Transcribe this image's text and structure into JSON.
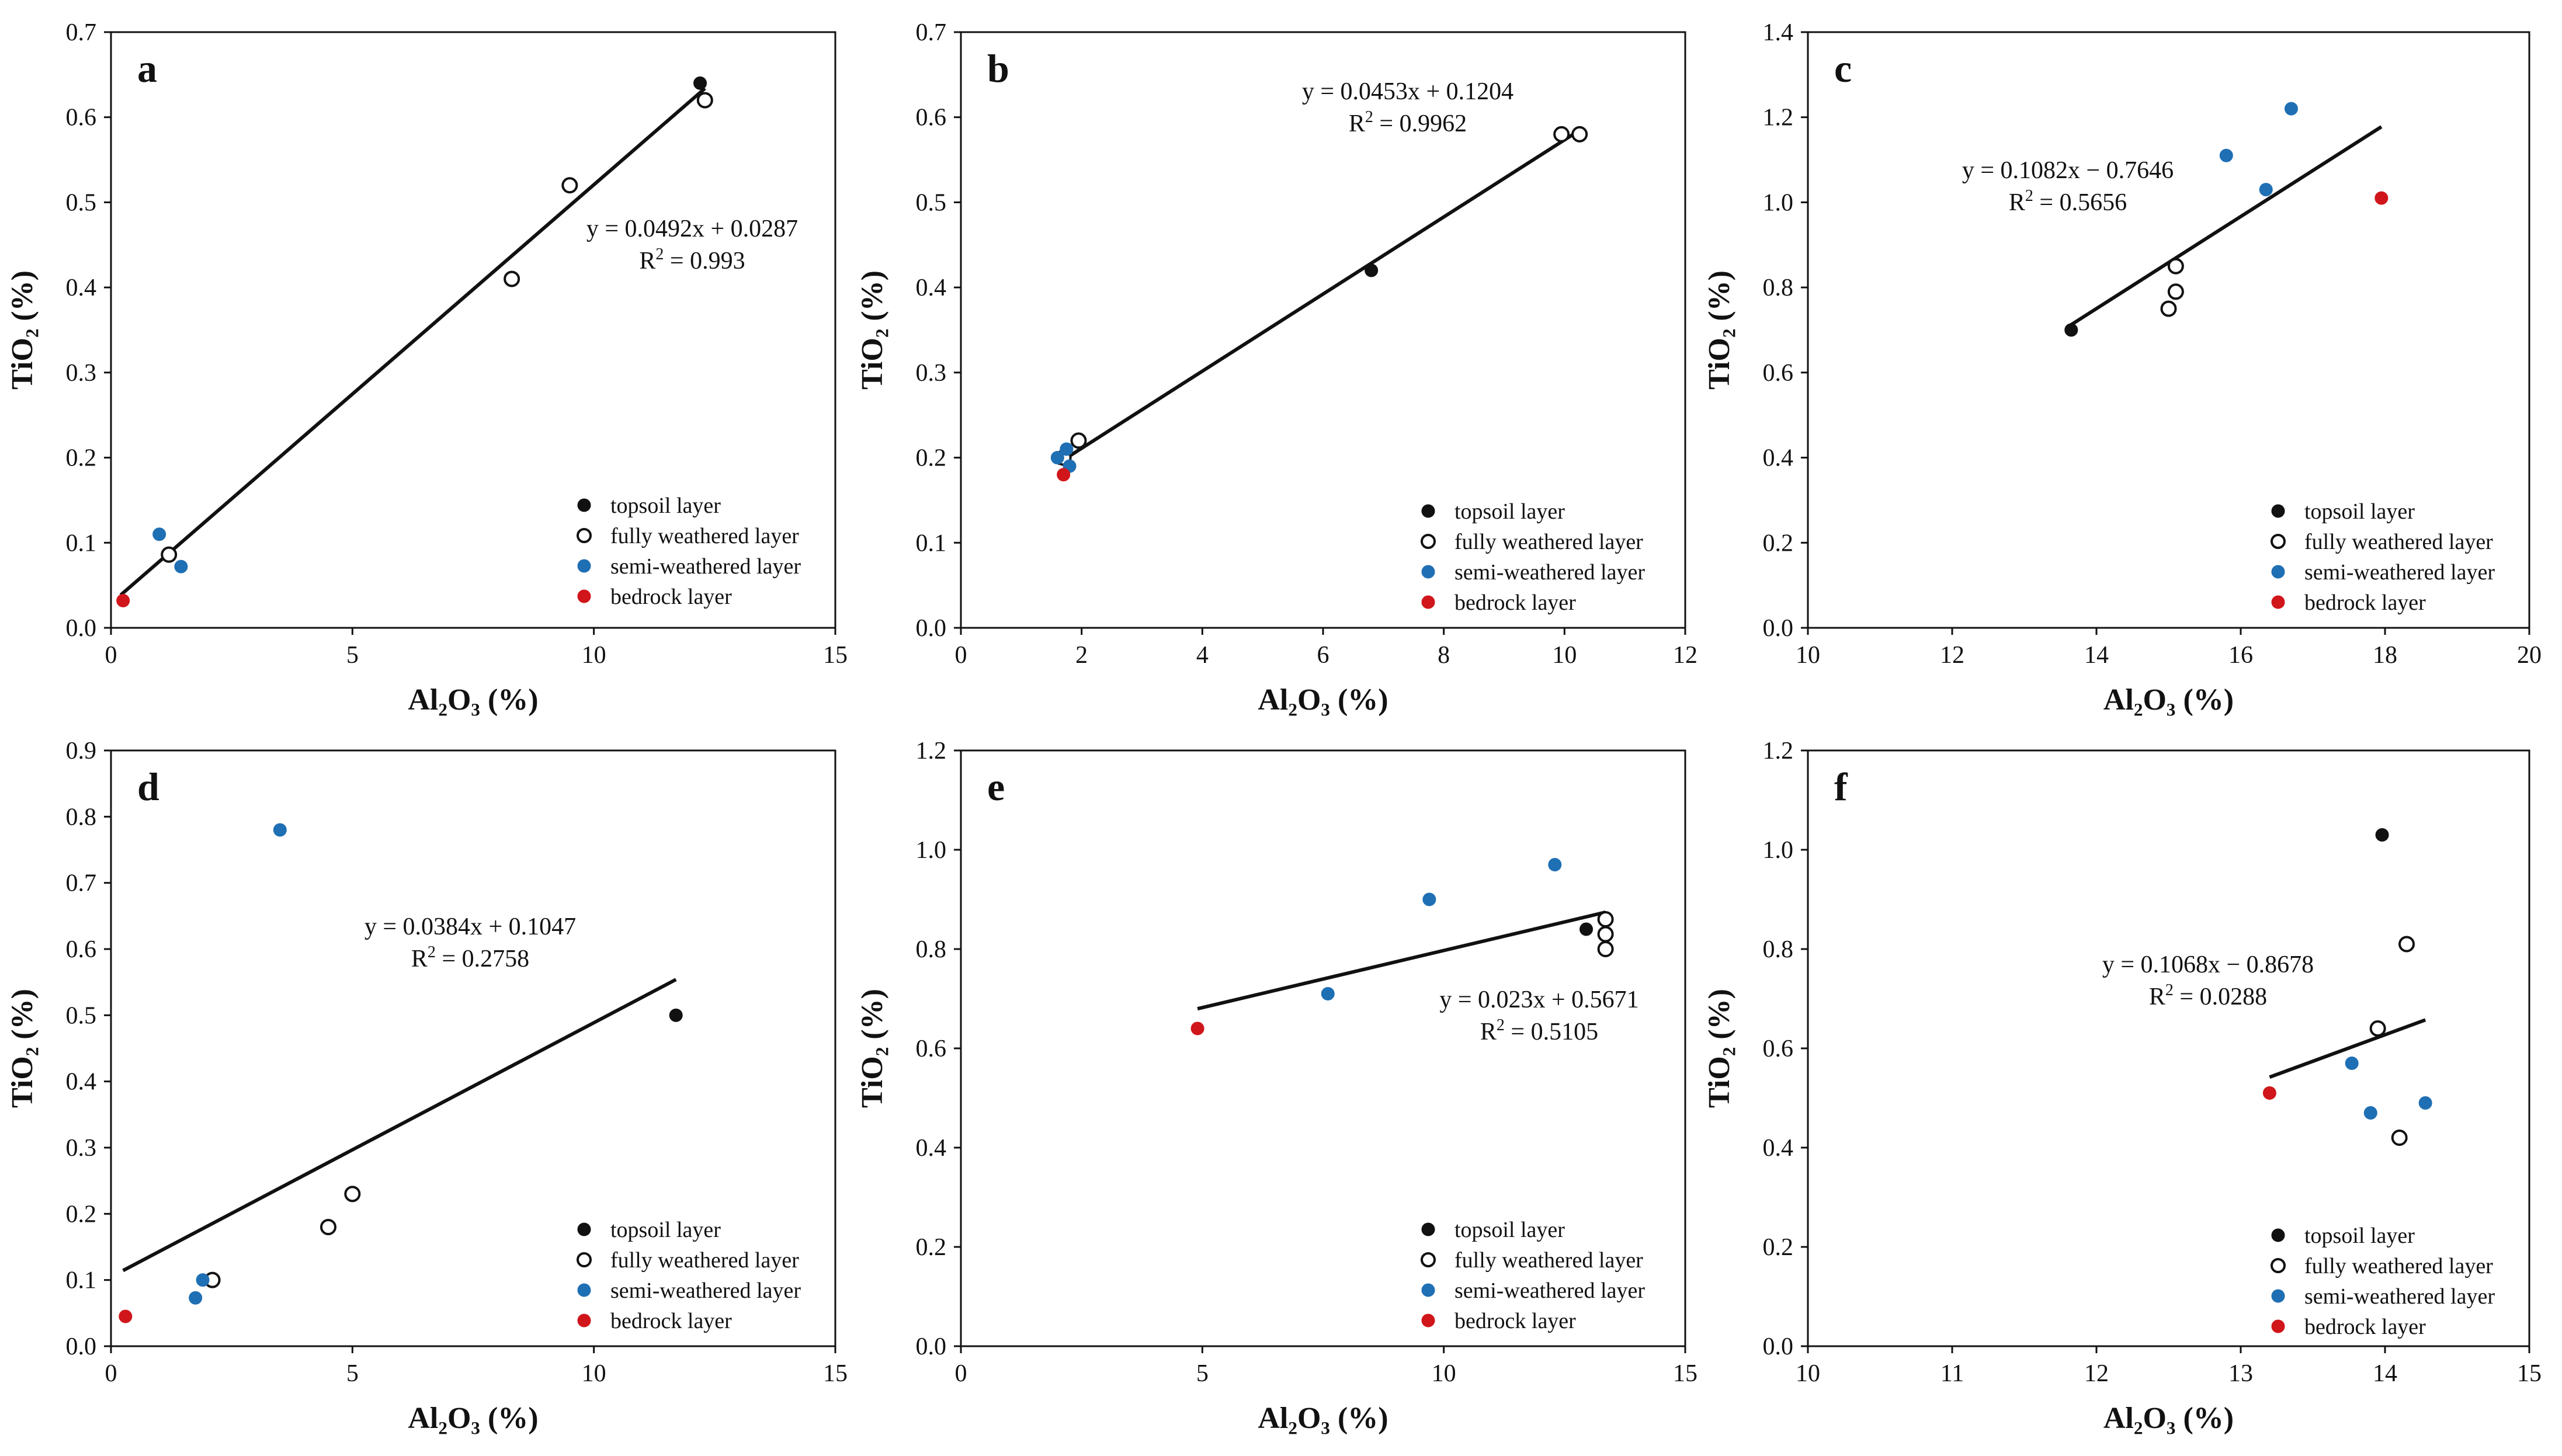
{
  "legend_labels": [
    "topsoil layer",
    "fully weathered layer",
    "semi-weathered layer",
    "bedrock layer"
  ],
  "colors": {
    "topsoil": "#111111",
    "fully_weathered": "#ffffff",
    "semi_weathered": "#1f6fb4",
    "bedrock": "#d0161b",
    "axis": "#111111"
  },
  "chart_data": [
    {
      "panel": "a",
      "type": "scatter",
      "xlabel": "Al₂O₃ (%)",
      "ylabel": "TiO₂ (%)",
      "xlim": [
        0,
        15
      ],
      "ylim": [
        0,
        0.7
      ],
      "xticks": [
        0,
        5,
        10,
        15
      ],
      "xtick_labels": [
        "0",
        "5",
        "10",
        "15"
      ],
      "yticks": [
        0,
        0.1,
        0.2,
        0.3,
        0.4,
        0.5,
        0.6,
        0.7
      ],
      "ytick_labels": [
        "0.0",
        "0.1",
        "0.2",
        "0.3",
        "0.4",
        "0.5",
        "0.6",
        "0.7"
      ],
      "series": [
        {
          "name": "topsoil layer",
          "points": [
            [
              12.2,
              0.64
            ]
          ]
        },
        {
          "name": "fully weathered layer",
          "points": [
            [
              12.3,
              0.62
            ],
            [
              9.5,
              0.52
            ],
            [
              8.3,
              0.41
            ],
            [
              1.2,
              0.086
            ]
          ]
        },
        {
          "name": "semi-weathered layer",
          "points": [
            [
              1.0,
              0.11
            ],
            [
              1.45,
              0.072
            ]
          ]
        },
        {
          "name": "bedrock layer",
          "points": [
            [
              0.25,
              0.032
            ]
          ]
        }
      ],
      "fit": {
        "slope": 0.0492,
        "intercept": 0.0287,
        "x_range": [
          0.2,
          12.3
        ]
      },
      "equation": "y = 0.0492x + 0.0287",
      "r2_label": "R",
      "r2_value": " = 0.993"
    },
    {
      "panel": "b",
      "type": "scatter",
      "xlabel": "Al₂O₃ (%)",
      "ylabel": "TiO₂ (%)",
      "xlim": [
        0,
        12
      ],
      "ylim": [
        0,
        0.7
      ],
      "xticks": [
        0,
        2,
        4,
        6,
        8,
        10,
        12
      ],
      "xtick_labels": [
        "0",
        "2",
        "4",
        "6",
        "8",
        "10",
        "12"
      ],
      "yticks": [
        0,
        0.1,
        0.2,
        0.3,
        0.4,
        0.5,
        0.6,
        0.7
      ],
      "ytick_labels": [
        "0.0",
        "0.1",
        "0.2",
        "0.3",
        "0.4",
        "0.5",
        "0.6",
        "0.7"
      ],
      "series": [
        {
          "name": "topsoil layer",
          "points": [
            [
              6.8,
              0.42
            ]
          ]
        },
        {
          "name": "fully weathered layer",
          "points": [
            [
              9.95,
              0.58
            ],
            [
              10.25,
              0.58
            ],
            [
              1.95,
              0.22
            ],
            [
              1.7,
              0.2
            ]
          ]
        },
        {
          "name": "semi-weathered layer",
          "points": [
            [
              1.6,
              0.2
            ],
            [
              1.75,
              0.21
            ],
            [
              1.8,
              0.19
            ]
          ]
        },
        {
          "name": "bedrock layer",
          "points": [
            [
              1.7,
              0.18
            ]
          ]
        }
      ],
      "fit": {
        "slope": 0.0453,
        "intercept": 0.1204,
        "x_range": [
          1.6,
          10.25
        ]
      },
      "equation": "y = 0.0453x + 0.1204",
      "r2_label": "R",
      "r2_value": " = 0.9962"
    },
    {
      "panel": "c",
      "type": "scatter",
      "xlabel": "Al₂O₃ (%)",
      "ylabel": "TiO₂ (%)",
      "xlim": [
        10,
        20
      ],
      "ylim": [
        0,
        1.4
      ],
      "xticks": [
        10,
        12,
        14,
        16,
        18,
        20
      ],
      "xtick_labels": [
        "10",
        "12",
        "14",
        "16",
        "18",
        "20"
      ],
      "yticks": [
        0,
        0.2,
        0.4,
        0.6,
        0.8,
        1.0,
        1.2,
        1.4
      ],
      "ytick_labels": [
        "0.0",
        "0.2",
        "0.4",
        "0.6",
        "0.8",
        "1.0",
        "1.2",
        "1.4"
      ],
      "series": [
        {
          "name": "topsoil layer",
          "points": [
            [
              13.65,
              0.7
            ]
          ]
        },
        {
          "name": "fully weathered layer",
          "points": [
            [
              15.1,
              0.85
            ],
            [
              15.1,
              0.79
            ],
            [
              15.0,
              0.75
            ]
          ]
        },
        {
          "name": "semi-weathered layer",
          "points": [
            [
              16.7,
              1.22
            ],
            [
              15.8,
              1.11
            ],
            [
              16.35,
              1.03
            ]
          ]
        },
        {
          "name": "bedrock layer",
          "points": [
            [
              17.95,
              1.01
            ]
          ]
        }
      ],
      "fit": {
        "slope": 0.1082,
        "intercept": -0.7646,
        "x_range": [
          13.6,
          17.95
        ]
      },
      "equation": "y = 0.1082x − 0.7646",
      "r2_label": "R",
      "r2_value": " = 0.5656"
    },
    {
      "panel": "d",
      "type": "scatter",
      "xlabel": "Al₂O₃ (%)",
      "ylabel": "TiO₂ (%)",
      "xlim": [
        0,
        15
      ],
      "ylim": [
        0,
        0.9
      ],
      "xticks": [
        0,
        5,
        10,
        15
      ],
      "xtick_labels": [
        "0",
        "5",
        "10",
        "15"
      ],
      "yticks": [
        0,
        0.1,
        0.2,
        0.3,
        0.4,
        0.5,
        0.6,
        0.7,
        0.8,
        0.9
      ],
      "ytick_labels": [
        "0.0",
        "0.1",
        "0.2",
        "0.3",
        "0.4",
        "0.5",
        "0.6",
        "0.7",
        "0.8",
        "0.9"
      ],
      "series": [
        {
          "name": "topsoil layer",
          "points": [
            [
              11.7,
              0.5
            ]
          ]
        },
        {
          "name": "fully weathered layer",
          "points": [
            [
              5.0,
              0.23
            ],
            [
              4.5,
              0.18
            ],
            [
              2.1,
              0.1
            ]
          ]
        },
        {
          "name": "semi-weathered layer",
          "points": [
            [
              3.5,
              0.78
            ],
            [
              1.9,
              0.1
            ],
            [
              1.75,
              0.073
            ]
          ]
        },
        {
          "name": "bedrock layer",
          "points": [
            [
              0.3,
              0.045
            ]
          ]
        }
      ],
      "fit": {
        "slope": 0.0384,
        "intercept": 0.1047,
        "x_range": [
          0.25,
          11.7
        ]
      },
      "equation": "y = 0.0384x + 0.1047",
      "r2_label": "R",
      "r2_value": " = 0.2758"
    },
    {
      "panel": "e",
      "type": "scatter",
      "xlabel": "Al₂O₃ (%)",
      "ylabel": "TiO₂ (%)",
      "xlim": [
        0,
        15
      ],
      "ylim": [
        0,
        1.2
      ],
      "xticks": [
        0,
        5,
        10,
        15
      ],
      "xtick_labels": [
        "0",
        "5",
        "10",
        "15"
      ],
      "yticks": [
        0,
        0.2,
        0.4,
        0.6,
        0.8,
        1.0,
        1.2
      ],
      "ytick_labels": [
        "0.0",
        "0.2",
        "0.4",
        "0.6",
        "0.8",
        "1.0",
        "1.2"
      ],
      "series": [
        {
          "name": "topsoil layer",
          "points": [
            [
              12.95,
              0.84
            ]
          ]
        },
        {
          "name": "fully weathered layer",
          "points": [
            [
              13.35,
              0.86
            ],
            [
              13.35,
              0.83
            ],
            [
              13.35,
              0.8
            ]
          ]
        },
        {
          "name": "semi-weathered layer",
          "points": [
            [
              9.7,
              0.9
            ],
            [
              12.3,
              0.97
            ],
            [
              7.6,
              0.71
            ]
          ]
        },
        {
          "name": "bedrock layer",
          "points": [
            [
              4.9,
              0.64
            ]
          ]
        }
      ],
      "fit": {
        "slope": 0.023,
        "intercept": 0.5671,
        "x_range": [
          4.9,
          13.35
        ]
      },
      "equation": "y = 0.023x + 0.5671",
      "r2_label": "R",
      "r2_value": " = 0.5105"
    },
    {
      "panel": "f",
      "type": "scatter",
      "xlabel": "Al₂O₃ (%)",
      "ylabel": "TiO₂ (%)",
      "xlim": [
        10,
        15
      ],
      "ylim": [
        0,
        1.2
      ],
      "xticks": [
        10,
        11,
        12,
        13,
        14,
        15
      ],
      "xtick_labels": [
        "10",
        "11",
        "12",
        "13",
        "14",
        "15"
      ],
      "yticks": [
        0,
        0.2,
        0.4,
        0.6,
        0.8,
        1.0,
        1.2
      ],
      "ytick_labels": [
        "0.0",
        "0.2",
        "0.4",
        "0.6",
        "0.8",
        "1.0",
        "1.2"
      ],
      "series": [
        {
          "name": "topsoil layer",
          "points": [
            [
              13.98,
              1.03
            ]
          ]
        },
        {
          "name": "fully weathered layer",
          "points": [
            [
              14.15,
              0.81
            ],
            [
              13.95,
              0.64
            ],
            [
              14.1,
              0.42
            ]
          ]
        },
        {
          "name": "semi-weathered layer",
          "points": [
            [
              13.77,
              0.57
            ],
            [
              13.9,
              0.47
            ],
            [
              14.28,
              0.49
            ]
          ]
        },
        {
          "name": "bedrock layer",
          "points": [
            [
              13.2,
              0.51
            ]
          ]
        }
      ],
      "fit": {
        "slope": 0.1068,
        "intercept": -0.8678,
        "x_range": [
          13.2,
          14.28
        ]
      },
      "equation": "y = 0.1068x − 0.8678",
      "r2_label": "R",
      "r2_value": " = 0.0288"
    }
  ]
}
